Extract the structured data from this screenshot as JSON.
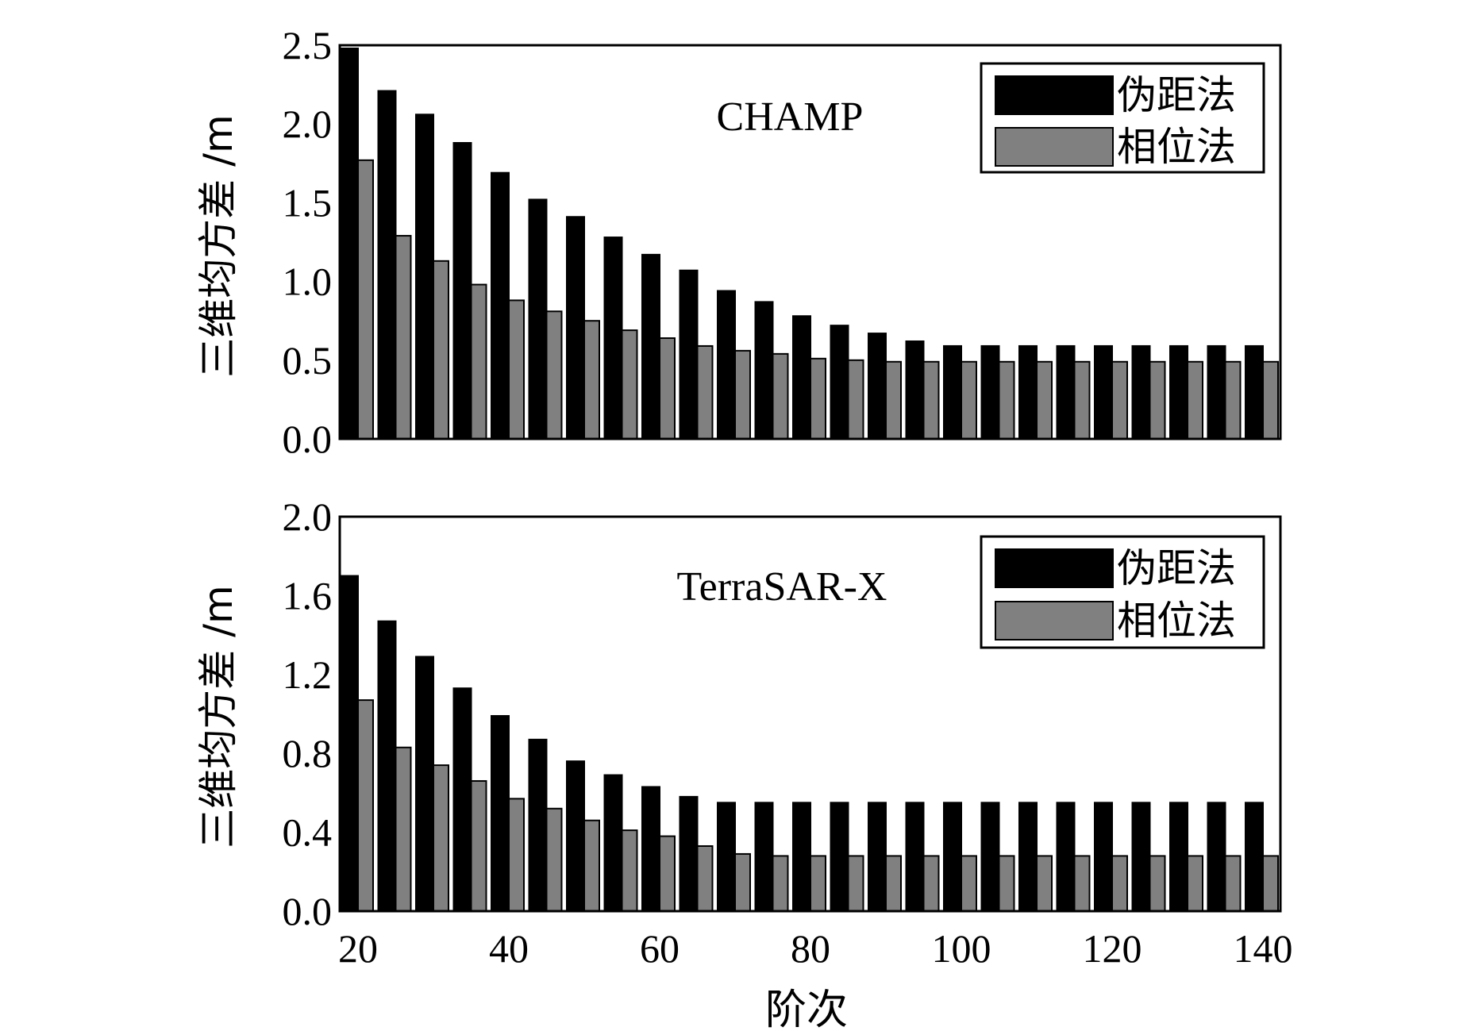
{
  "chart_data": [
    {
      "type": "bar",
      "title": "CHAMP",
      "ylabel": "三维均方差 /m",
      "xlabel": "",
      "ylim": [
        0,
        2.5
      ],
      "yticks": [
        "0.0",
        "0.5",
        "1.0",
        "1.5",
        "2.0",
        "2.5"
      ],
      "categories": [
        20,
        25,
        30,
        35,
        40,
        45,
        50,
        55,
        60,
        65,
        70,
        75,
        80,
        85,
        90,
        95,
        100,
        105,
        110,
        115,
        120,
        125,
        130,
        135,
        140
      ],
      "series": [
        {
          "name": "伪距法",
          "color": "#000000",
          "values": [
            2.48,
            2.21,
            2.06,
            1.88,
            1.69,
            1.52,
            1.41,
            1.28,
            1.17,
            1.07,
            0.94,
            0.87,
            0.78,
            0.72,
            0.67,
            0.62,
            0.59,
            0.59,
            0.59,
            0.59,
            0.59,
            0.59,
            0.59,
            0.59,
            0.59
          ]
        },
        {
          "name": "相位法",
          "color": "#808080",
          "values": [
            1.77,
            1.29,
            1.13,
            0.98,
            0.88,
            0.81,
            0.75,
            0.69,
            0.64,
            0.59,
            0.56,
            0.54,
            0.51,
            0.5,
            0.49,
            0.49,
            0.49,
            0.49,
            0.49,
            0.49,
            0.49,
            0.49,
            0.49,
            0.49,
            0.49
          ]
        }
      ],
      "legend": {
        "position": "top-right",
        "entries": [
          "伪距法",
          "相位法"
        ]
      }
    },
    {
      "type": "bar",
      "title": "TerraSAR-X",
      "ylabel": "三维均方差 /m",
      "xlabel": "阶次",
      "ylim": [
        0,
        2.0
      ],
      "yticks": [
        "0.0",
        "0.4",
        "0.8",
        "1.2",
        "1.6",
        "2.0"
      ],
      "xticks": [
        "20",
        "40",
        "60",
        "80",
        "100",
        "120",
        "140"
      ],
      "categories": [
        20,
        25,
        30,
        35,
        40,
        45,
        50,
        55,
        60,
        65,
        70,
        75,
        80,
        85,
        90,
        95,
        100,
        105,
        110,
        115,
        120,
        125,
        130,
        135,
        140
      ],
      "series": [
        {
          "name": "伪距法",
          "color": "#000000",
          "values": [
            1.7,
            1.47,
            1.29,
            1.13,
            0.99,
            0.87,
            0.76,
            0.69,
            0.63,
            0.58,
            0.55,
            0.55,
            0.55,
            0.55,
            0.55,
            0.55,
            0.55,
            0.55,
            0.55,
            0.55,
            0.55,
            0.55,
            0.55,
            0.55,
            0.55
          ]
        },
        {
          "name": "相位法",
          "color": "#808080",
          "values": [
            1.07,
            0.83,
            0.74,
            0.66,
            0.57,
            0.52,
            0.46,
            0.41,
            0.38,
            0.33,
            0.29,
            0.28,
            0.28,
            0.28,
            0.28,
            0.28,
            0.28,
            0.28,
            0.28,
            0.28,
            0.28,
            0.28,
            0.28,
            0.28,
            0.28
          ]
        }
      ],
      "legend": {
        "position": "top-right",
        "entries": [
          "伪距法",
          "相位法"
        ]
      }
    }
  ]
}
